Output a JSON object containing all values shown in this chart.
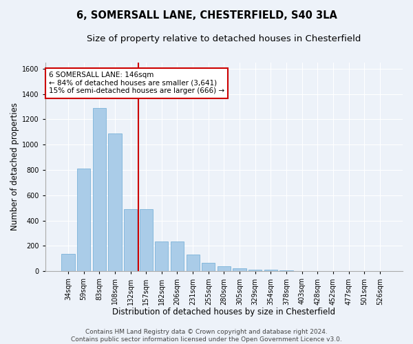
{
  "title": "6, SOMERSALL LANE, CHESTERFIELD, S40 3LA",
  "subtitle": "Size of property relative to detached houses in Chesterfield",
  "xlabel": "Distribution of detached houses by size in Chesterfield",
  "ylabel": "Number of detached properties",
  "footer_line1": "Contains HM Land Registry data © Crown copyright and database right 2024.",
  "footer_line2": "Contains public sector information licensed under the Open Government Licence v3.0.",
  "bar_labels": [
    "34sqm",
    "59sqm",
    "83sqm",
    "108sqm",
    "132sqm",
    "157sqm",
    "182sqm",
    "206sqm",
    "231sqm",
    "255sqm",
    "280sqm",
    "305sqm",
    "329sqm",
    "354sqm",
    "378sqm",
    "403sqm",
    "428sqm",
    "452sqm",
    "477sqm",
    "501sqm",
    "526sqm"
  ],
  "bar_values": [
    140,
    810,
    1290,
    1090,
    490,
    490,
    235,
    235,
    130,
    65,
    40,
    25,
    15,
    10,
    5,
    3,
    2,
    1,
    1,
    1,
    0
  ],
  "bar_color": "#aacce8",
  "bar_edge_color": "#6aaad4",
  "vline_x": 4.5,
  "vline_color": "#cc0000",
  "annotation_text": "6 SOMERSALL LANE: 146sqm\n← 84% of detached houses are smaller (3,641)\n15% of semi-detached houses are larger (666) →",
  "annotation_box_color": "#cc0000",
  "ylim": [
    0,
    1650
  ],
  "yticks": [
    0,
    200,
    400,
    600,
    800,
    1000,
    1200,
    1400,
    1600
  ],
  "bg_color": "#edf2f9",
  "plot_bg_color": "#edf2f9",
  "grid_color": "#ffffff",
  "title_fontsize": 10.5,
  "subtitle_fontsize": 9.5,
  "axis_label_fontsize": 8.5,
  "tick_fontsize": 7,
  "annotation_fontsize": 7.5,
  "footer_fontsize": 6.5
}
